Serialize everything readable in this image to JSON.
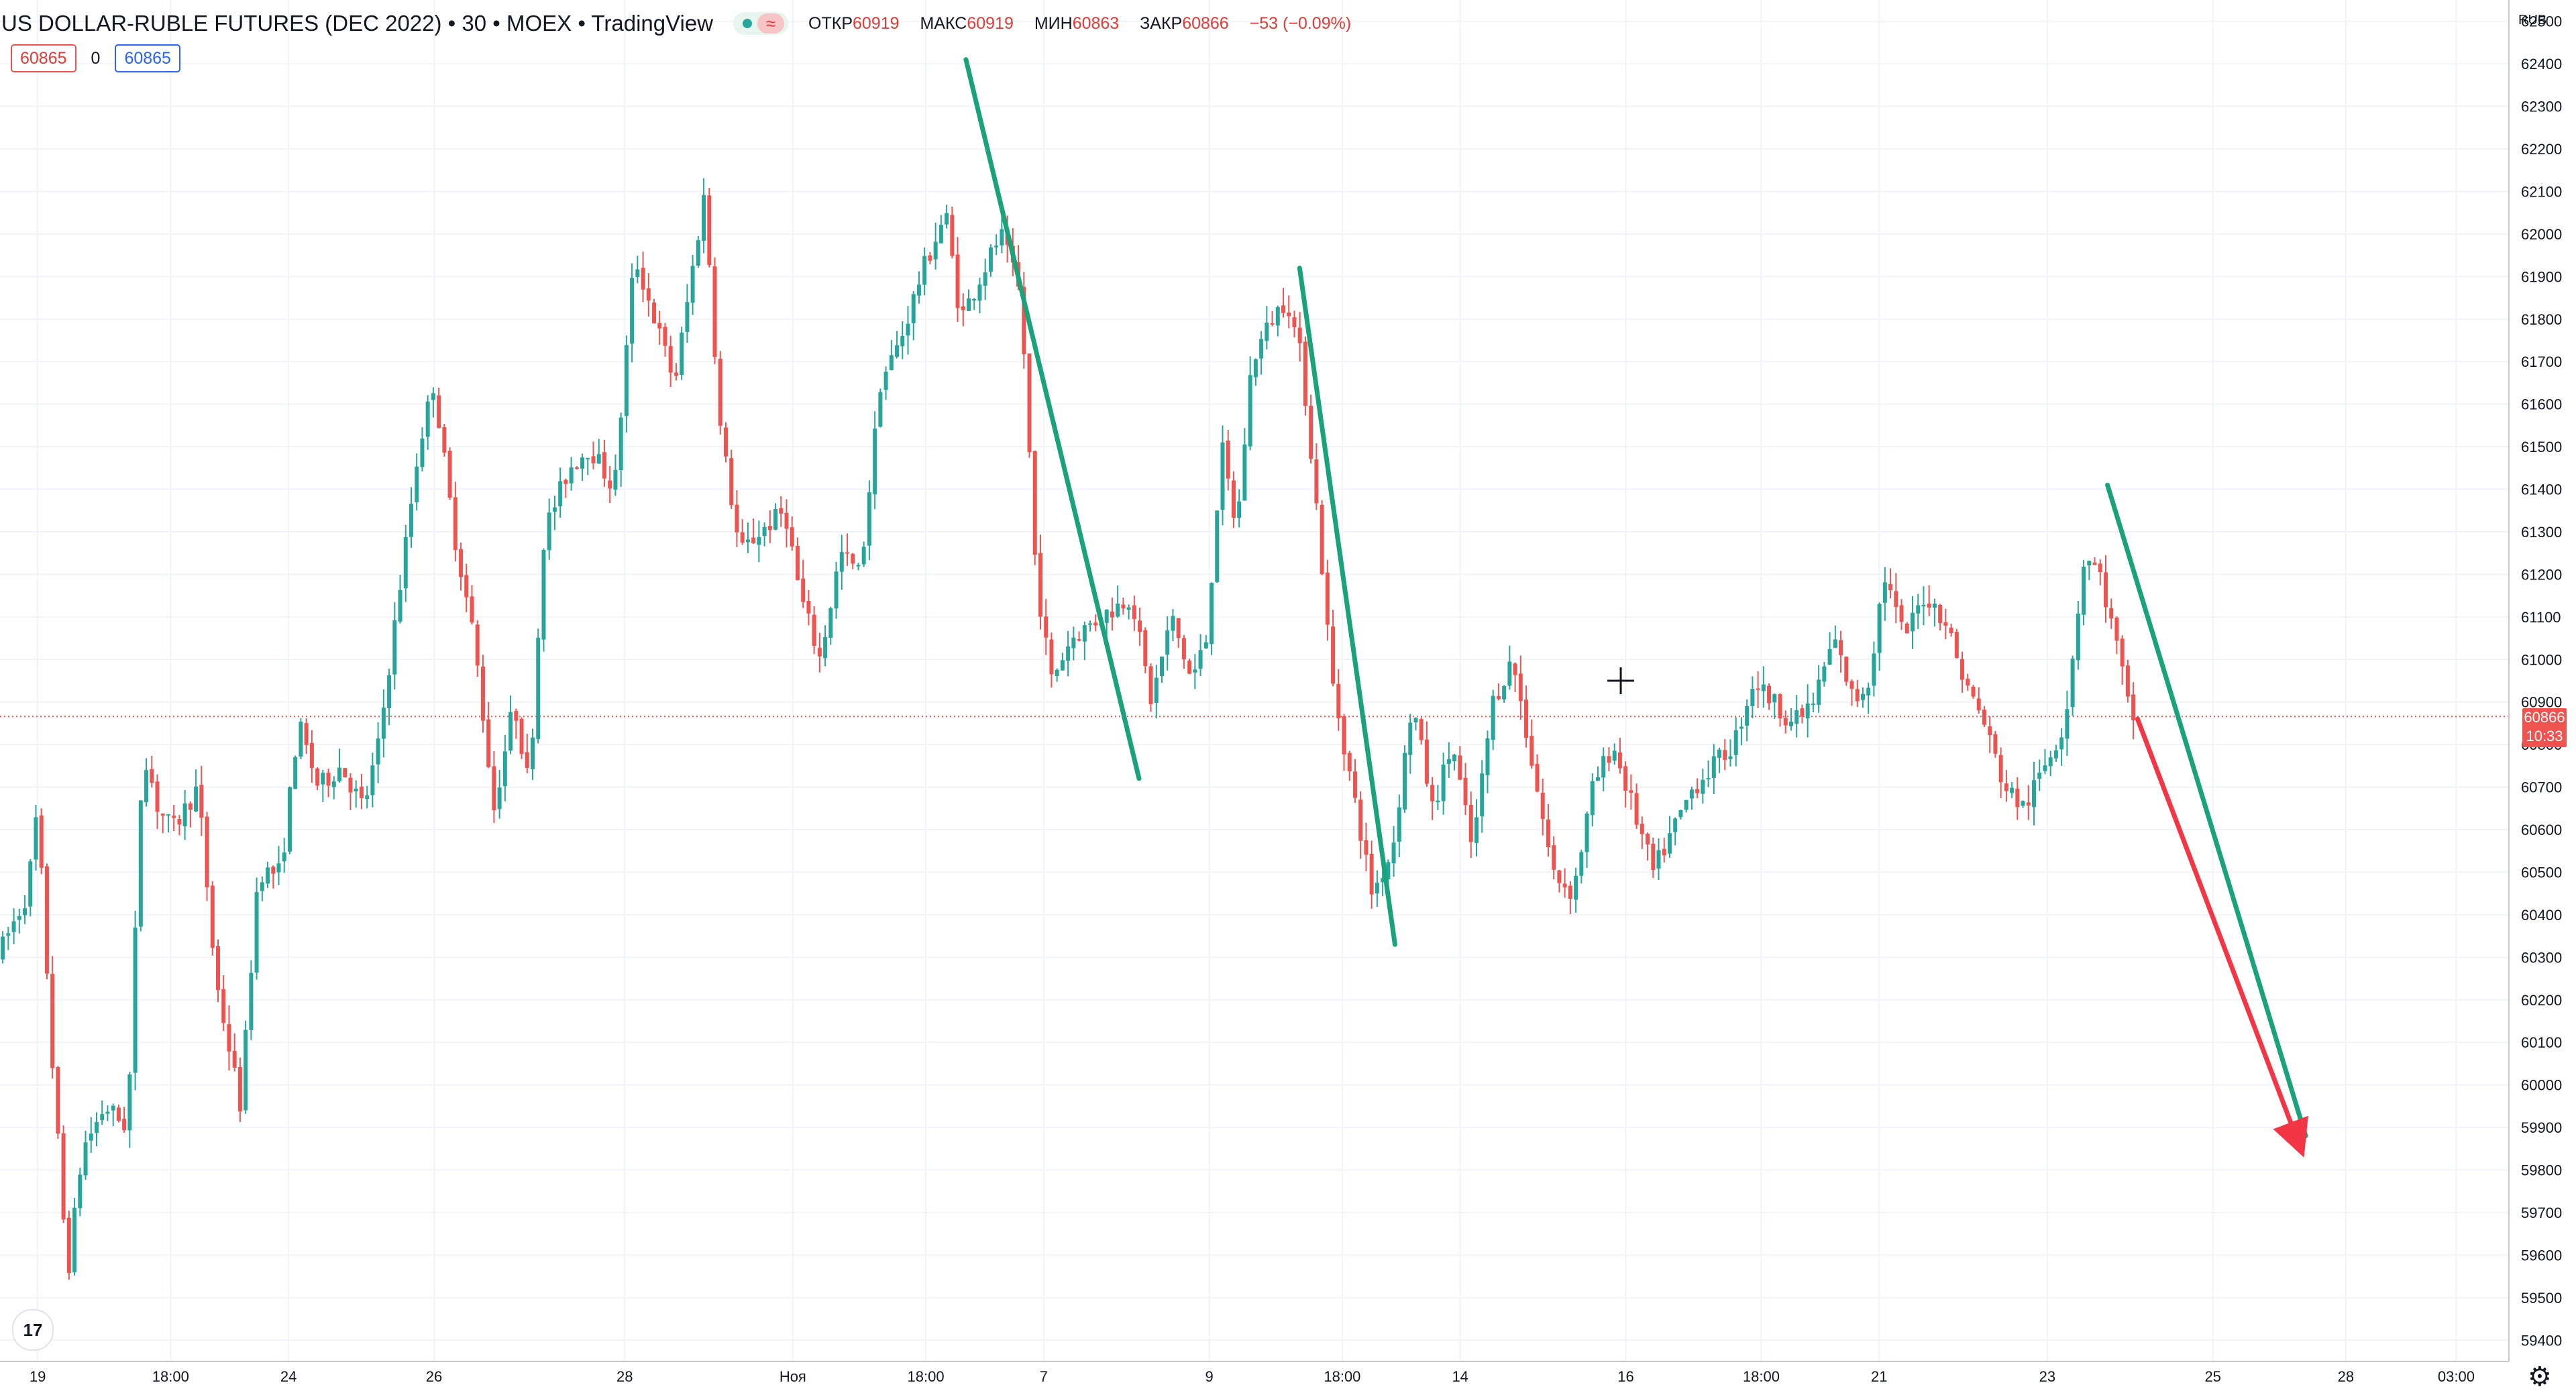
{
  "header": {
    "title": "US DOLLAR-RUBLE FUTURES (DEC 2022) • 30 • MOEX • TradingView",
    "approx_symbol": "≈",
    "ohlc": [
      {
        "label": "ОТКР",
        "value": "60919"
      },
      {
        "label": "МАКС",
        "value": "60919"
      },
      {
        "label": "МИН",
        "value": "60863"
      },
      {
        "label": "ЗАКР",
        "value": "60866"
      },
      {
        "label": "",
        "value": "−53 (−0.09%)"
      }
    ]
  },
  "price_boxes": {
    "bid": "60865",
    "spread": "0",
    "ask": "60865"
  },
  "currency": "RUB",
  "current_price": {
    "value": "60866",
    "countdown": "10:33"
  },
  "logo_text": "17",
  "icons": {
    "settings": "gear-icon",
    "cursor": "crosshair-icon",
    "logo": "tradingview-logo-icon"
  },
  "colors": {
    "up": "#26a69a",
    "down": "#ef5350",
    "trend_green": "#1aa37a",
    "forecast_red": "#f23645",
    "grid": "#f0f3fa"
  },
  "chart_data": {
    "type": "candlestick",
    "y_ticks": [
      59400,
      59500,
      59600,
      59700,
      59800,
      59900,
      60000,
      60100,
      60200,
      60300,
      60400,
      60500,
      60600,
      60700,
      60800,
      60900,
      61000,
      61100,
      61200,
      61300,
      61400,
      61500,
      61600,
      61700,
      61800,
      61900,
      62000,
      62100,
      62200,
      62300,
      62400,
      62500
    ],
    "ylim": [
      59350,
      62550
    ],
    "current_price": 60866,
    "x_tick_labels": [
      {
        "label": "19",
        "pos": 0.015
      },
      {
        "label": "18:00",
        "pos": 0.068
      },
      {
        "label": "24",
        "pos": 0.115
      },
      {
        "label": "26",
        "pos": 0.173
      },
      {
        "label": "28",
        "pos": 0.249
      },
      {
        "label": "Ноя",
        "pos": 0.316
      },
      {
        "label": "18:00",
        "pos": 0.369
      },
      {
        "label": "7",
        "pos": 0.416
      },
      {
        "label": "9",
        "pos": 0.482
      },
      {
        "label": "18:00",
        "pos": 0.535
      },
      {
        "label": "14",
        "pos": 0.582
      },
      {
        "label": "16",
        "pos": 0.648
      },
      {
        "label": "18:00",
        "pos": 0.702
      },
      {
        "label": "21",
        "pos": 0.749
      },
      {
        "label": "23",
        "pos": 0.816
      },
      {
        "label": "25",
        "pos": 0.882
      },
      {
        "label": "28",
        "pos": 0.935
      },
      {
        "label": "03:00",
        "pos": 0.979
      }
    ],
    "price_path": [
      [
        0.0,
        60300
      ],
      [
        0.012,
        60450
      ],
      [
        0.016,
        60650
      ],
      [
        0.022,
        60050
      ],
      [
        0.028,
        59550
      ],
      [
        0.034,
        59850
      ],
      [
        0.043,
        59950
      ],
      [
        0.052,
        59900
      ],
      [
        0.058,
        60800
      ],
      [
        0.064,
        60650
      ],
      [
        0.07,
        60600
      ],
      [
        0.08,
        60700
      ],
      [
        0.087,
        60250
      ],
      [
        0.097,
        59950
      ],
      [
        0.104,
        60500
      ],
      [
        0.113,
        60500
      ],
      [
        0.12,
        60850
      ],
      [
        0.128,
        60700
      ],
      [
        0.137,
        60750
      ],
      [
        0.146,
        60650
      ],
      [
        0.152,
        60800
      ],
      [
        0.16,
        61150
      ],
      [
        0.168,
        61500
      ],
      [
        0.174,
        61650
      ],
      [
        0.182,
        61300
      ],
      [
        0.19,
        61050
      ],
      [
        0.198,
        60650
      ],
      [
        0.206,
        60900
      ],
      [
        0.212,
        60700
      ],
      [
        0.218,
        61300
      ],
      [
        0.228,
        61450
      ],
      [
        0.236,
        61500
      ],
      [
        0.246,
        61400
      ],
      [
        0.254,
        61950
      ],
      [
        0.262,
        61800
      ],
      [
        0.27,
        61650
      ],
      [
        0.282,
        62100
      ],
      [
        0.288,
        61550
      ],
      [
        0.296,
        61250
      ],
      [
        0.304,
        61300
      ],
      [
        0.314,
        61350
      ],
      [
        0.32,
        61150
      ],
      [
        0.328,
        61000
      ],
      [
        0.336,
        61250
      ],
      [
        0.344,
        61200
      ],
      [
        0.352,
        61650
      ],
      [
        0.36,
        61750
      ],
      [
        0.368,
        61900
      ],
      [
        0.378,
        62050
      ],
      [
        0.384,
        61800
      ],
      [
        0.392,
        61900
      ],
      [
        0.4,
        62000
      ],
      [
        0.408,
        61850
      ],
      [
        0.414,
        61200
      ],
      [
        0.42,
        60950
      ],
      [
        0.428,
        61050
      ],
      [
        0.44,
        61100
      ],
      [
        0.452,
        61150
      ],
      [
        0.46,
        60900
      ],
      [
        0.468,
        61100
      ],
      [
        0.476,
        60950
      ],
      [
        0.482,
        61050
      ],
      [
        0.488,
        61500
      ],
      [
        0.494,
        61300
      ],
      [
        0.5,
        61700
      ],
      [
        0.508,
        61800
      ],
      [
        0.514,
        61850
      ],
      [
        0.52,
        61700
      ],
      [
        0.526,
        61350
      ],
      [
        0.532,
        60950
      ],
      [
        0.54,
        60700
      ],
      [
        0.548,
        60450
      ],
      [
        0.556,
        60550
      ],
      [
        0.564,
        60900
      ],
      [
        0.572,
        60650
      ],
      [
        0.58,
        60800
      ],
      [
        0.588,
        60550
      ],
      [
        0.596,
        60900
      ],
      [
        0.604,
        61000
      ],
      [
        0.612,
        60750
      ],
      [
        0.62,
        60500
      ],
      [
        0.628,
        60450
      ],
      [
        0.636,
        60700
      ],
      [
        0.644,
        60800
      ],
      [
        0.652,
        60650
      ],
      [
        0.66,
        60500
      ],
      [
        0.668,
        60600
      ],
      [
        0.676,
        60700
      ],
      [
        0.684,
        60750
      ],
      [
        0.692,
        60800
      ],
      [
        0.7,
        60950
      ],
      [
        0.708,
        60900
      ],
      [
        0.716,
        60850
      ],
      [
        0.724,
        60900
      ],
      [
        0.732,
        61050
      ],
      [
        0.74,
        60900
      ],
      [
        0.746,
        60950
      ],
      [
        0.752,
        61200
      ],
      [
        0.76,
        61050
      ],
      [
        0.768,
        61150
      ],
      [
        0.776,
        61100
      ],
      [
        0.784,
        60950
      ],
      [
        0.792,
        60850
      ],
      [
        0.8,
        60700
      ],
      [
        0.808,
        60650
      ],
      [
        0.816,
        60750
      ],
      [
        0.824,
        60850
      ],
      [
        0.832,
        61250
      ],
      [
        0.838,
        61200
      ],
      [
        0.846,
        61000
      ],
      [
        0.85,
        60866
      ]
    ],
    "trend_lines": [
      {
        "color": "green",
        "x": [
          0.385,
          0.454
        ],
        "y": [
          62410,
          60720
        ]
      },
      {
        "color": "green",
        "x": [
          0.518,
          0.556
        ],
        "y": [
          61920,
          60330
        ]
      },
      {
        "color": "green",
        "x": [
          0.84,
          0.919
        ],
        "y": [
          61410,
          59880
        ]
      },
      {
        "color": "red",
        "x": [
          0.852,
          0.917
        ],
        "y": [
          60860,
          59850
        ],
        "arrow": true
      }
    ],
    "crosshair": {
      "x": 0.646,
      "y": 60950
    },
    "grid": true
  }
}
